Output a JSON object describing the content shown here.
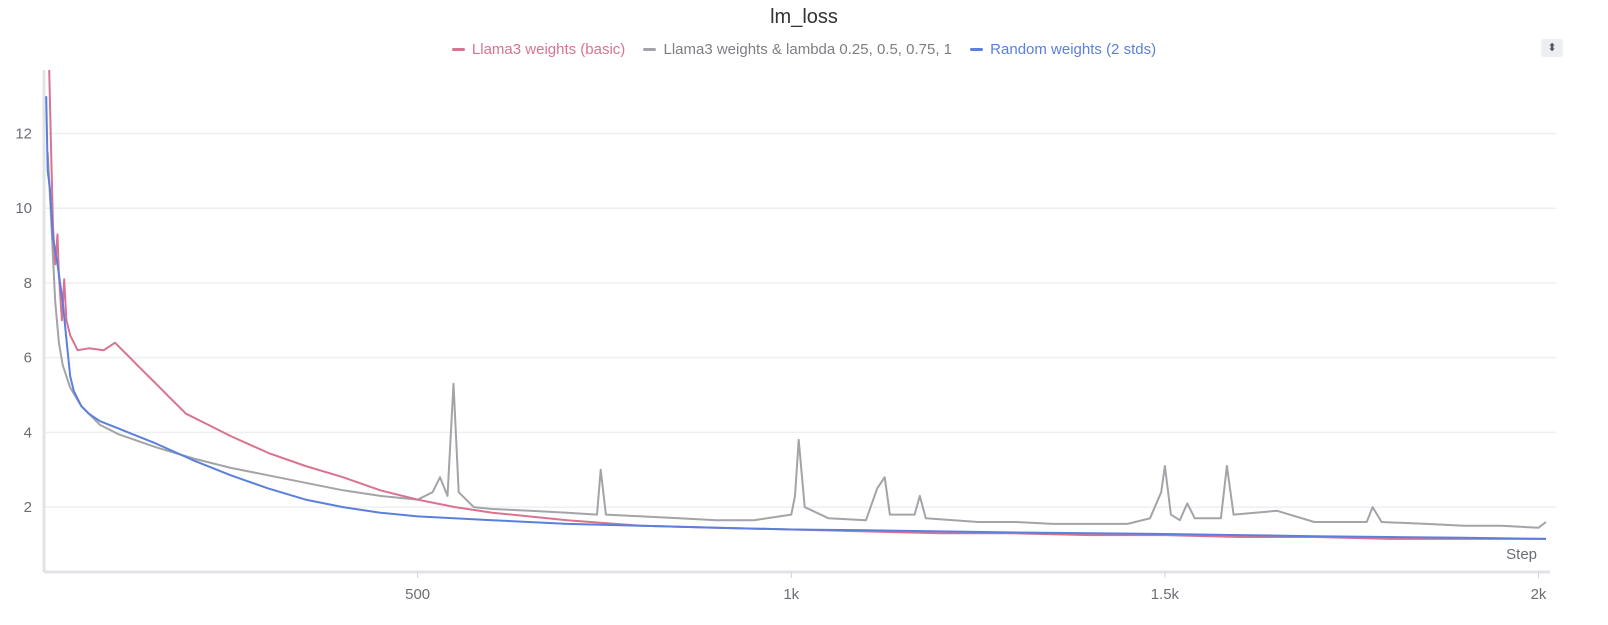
{
  "chart_data": {
    "type": "line",
    "title": "lm_loss",
    "xlabel": "Step",
    "ylabel": "",
    "xlim": [
      0,
      2010
    ],
    "ylim": [
      0.37,
      13.7
    ],
    "grid": "horizontal",
    "legend_placement": "top-center",
    "x_ticks": [
      {
        "value": 500,
        "label": "500"
      },
      {
        "value": 1000,
        "label": "1k"
      },
      {
        "value": 1500,
        "label": "1.5k"
      },
      {
        "value": 2000,
        "label": "2k"
      }
    ],
    "y_ticks": [
      {
        "value": 2,
        "label": "2"
      },
      {
        "value": 4,
        "label": "4"
      },
      {
        "value": 6,
        "label": "6"
      },
      {
        "value": 8,
        "label": "8"
      },
      {
        "value": 10,
        "label": "10"
      },
      {
        "value": 12,
        "label": "12"
      }
    ],
    "series": [
      {
        "name": "Llama3 weights (basic)",
        "color": "#d9738f",
        "points": [
          [
            7,
            13.7
          ],
          [
            9,
            12
          ],
          [
            12,
            9.5
          ],
          [
            15,
            8.5
          ],
          [
            18,
            9.3
          ],
          [
            20,
            8.2
          ],
          [
            24,
            7.0
          ],
          [
            27,
            8.1
          ],
          [
            30,
            7.0
          ],
          [
            35,
            6.6
          ],
          [
            45,
            6.2
          ],
          [
            60,
            6.25
          ],
          [
            80,
            6.2
          ],
          [
            95,
            6.4
          ],
          [
            110,
            6.1
          ],
          [
            130,
            5.7
          ],
          [
            150,
            5.3
          ],
          [
            170,
            4.9
          ],
          [
            190,
            4.5
          ],
          [
            220,
            4.2
          ],
          [
            250,
            3.9
          ],
          [
            300,
            3.45
          ],
          [
            350,
            3.1
          ],
          [
            400,
            2.8
          ],
          [
            450,
            2.45
          ],
          [
            500,
            2.2
          ],
          [
            550,
            2.0
          ],
          [
            600,
            1.85
          ],
          [
            700,
            1.65
          ],
          [
            800,
            1.5
          ],
          [
            900,
            1.45
          ],
          [
            1000,
            1.4
          ],
          [
            1100,
            1.35
          ],
          [
            1200,
            1.3
          ],
          [
            1300,
            1.3
          ],
          [
            1400,
            1.25
          ],
          [
            1500,
            1.25
          ],
          [
            1600,
            1.2
          ],
          [
            1700,
            1.2
          ],
          [
            1800,
            1.15
          ],
          [
            1900,
            1.15
          ],
          [
            2010,
            1.15
          ]
        ]
      },
      {
        "name": "Llama3 weights & lambda 0.25, 0.5, 0.75, 1",
        "color": "#a2a4a8",
        "points": [
          [
            5,
            11.5
          ],
          [
            10,
            9.5
          ],
          [
            15,
            7.5
          ],
          [
            20,
            6.4
          ],
          [
            25,
            5.8
          ],
          [
            35,
            5.2
          ],
          [
            50,
            4.7
          ],
          [
            75,
            4.2
          ],
          [
            100,
            3.95
          ],
          [
            150,
            3.6
          ],
          [
            200,
            3.3
          ],
          [
            250,
            3.05
          ],
          [
            300,
            2.85
          ],
          [
            350,
            2.65
          ],
          [
            400,
            2.45
          ],
          [
            450,
            2.3
          ],
          [
            500,
            2.2
          ],
          [
            520,
            2.4
          ],
          [
            530,
            2.8
          ],
          [
            540,
            2.3
          ],
          [
            548,
            5.3
          ],
          [
            555,
            2.4
          ],
          [
            575,
            2.0
          ],
          [
            600,
            1.95
          ],
          [
            650,
            1.9
          ],
          [
            700,
            1.85
          ],
          [
            740,
            1.8
          ],
          [
            745,
            3.0
          ],
          [
            752,
            1.8
          ],
          [
            800,
            1.75
          ],
          [
            850,
            1.7
          ],
          [
            900,
            1.65
          ],
          [
            950,
            1.65
          ],
          [
            1000,
            1.8
          ],
          [
            1005,
            2.3
          ],
          [
            1010,
            3.8
          ],
          [
            1018,
            2.0
          ],
          [
            1050,
            1.7
          ],
          [
            1100,
            1.65
          ],
          [
            1115,
            2.5
          ],
          [
            1125,
            2.8
          ],
          [
            1132,
            1.8
          ],
          [
            1165,
            1.8
          ],
          [
            1172,
            2.3
          ],
          [
            1180,
            1.7
          ],
          [
            1250,
            1.6
          ],
          [
            1300,
            1.6
          ],
          [
            1350,
            1.55
          ],
          [
            1400,
            1.55
          ],
          [
            1450,
            1.55
          ],
          [
            1480,
            1.7
          ],
          [
            1495,
            2.4
          ],
          [
            1500,
            3.1
          ],
          [
            1508,
            1.8
          ],
          [
            1520,
            1.65
          ],
          [
            1530,
            2.1
          ],
          [
            1540,
            1.7
          ],
          [
            1575,
            1.7
          ],
          [
            1583,
            3.1
          ],
          [
            1592,
            1.8
          ],
          [
            1650,
            1.9
          ],
          [
            1700,
            1.6
          ],
          [
            1770,
            1.6
          ],
          [
            1778,
            2.0
          ],
          [
            1790,
            1.6
          ],
          [
            1850,
            1.55
          ],
          [
            1900,
            1.5
          ],
          [
            1950,
            1.5
          ],
          [
            2000,
            1.45
          ],
          [
            2010,
            1.6
          ]
        ]
      },
      {
        "name": "Random weights (2 stds)",
        "color": "#5b7fdc",
        "points": [
          [
            3,
            13
          ],
          [
            5,
            11
          ],
          [
            8,
            10.5
          ],
          [
            12,
            9.2
          ],
          [
            18,
            8.5
          ],
          [
            25,
            7.5
          ],
          [
            30,
            6.5
          ],
          [
            35,
            5.5
          ],
          [
            40,
            5.1
          ],
          [
            50,
            4.7
          ],
          [
            60,
            4.5
          ],
          [
            75,
            4.3
          ],
          [
            100,
            4.1
          ],
          [
            150,
            3.7
          ],
          [
            200,
            3.25
          ],
          [
            250,
            2.85
          ],
          [
            300,
            2.5
          ],
          [
            350,
            2.2
          ],
          [
            400,
            2.0
          ],
          [
            450,
            1.85
          ],
          [
            500,
            1.75
          ],
          [
            600,
            1.65
          ],
          [
            700,
            1.55
          ],
          [
            800,
            1.5
          ],
          [
            900,
            1.45
          ],
          [
            1000,
            1.4
          ],
          [
            1100,
            1.38
          ],
          [
            1200,
            1.35
          ],
          [
            1300,
            1.32
          ],
          [
            1400,
            1.3
          ],
          [
            1500,
            1.28
          ],
          [
            1600,
            1.25
          ],
          [
            1700,
            1.22
          ],
          [
            1800,
            1.2
          ],
          [
            1900,
            1.18
          ],
          [
            2010,
            1.15
          ]
        ]
      }
    ]
  },
  "controls": {
    "menu_icon": "sort-arrows-icon",
    "menu_glyph": "⬍"
  }
}
